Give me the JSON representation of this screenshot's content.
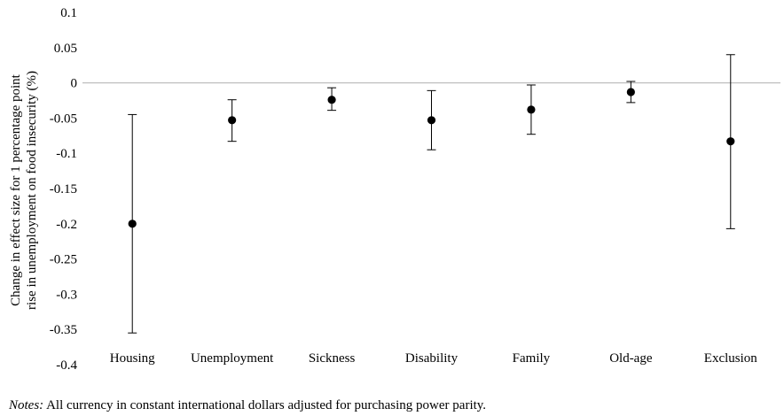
{
  "chart_data": {
    "type": "scatter",
    "title": "",
    "ylabel": [
      "Change in effect size for 1 percentage point",
      "rise in unemployment on food insecurity (%)"
    ],
    "xlabel": "",
    "categories": [
      "Housing",
      "Unemployment",
      "Sickness",
      "Disability",
      "Family",
      "Old-age",
      "Exclusion"
    ],
    "ylim": [
      -0.4,
      0.1
    ],
    "yticks": [
      0.1,
      0.05,
      0,
      -0.05,
      -0.1,
      -0.15,
      -0.2,
      -0.25,
      -0.3,
      -0.35,
      -0.4
    ],
    "ytick_labels": [
      "0.1",
      "0.05",
      "0",
      "-0.05",
      "-0.1",
      "-0.15",
      "-0.2",
      "-0.25",
      "-0.3",
      "-0.35",
      "-0.4"
    ],
    "series": [
      {
        "estimates": [
          -0.2,
          -0.053,
          -0.024,
          -0.053,
          -0.038,
          -0.013,
          -0.083
        ],
        "ci_upper": [
          -0.045,
          -0.024,
          -0.007,
          -0.011,
          -0.003,
          0.002,
          0.04
        ],
        "ci_lower": [
          -0.355,
          -0.083,
          -0.039,
          -0.095,
          -0.073,
          -0.028,
          -0.207
        ]
      }
    ],
    "grid": false,
    "zero_line": true,
    "marker_color": "#000000",
    "zero_line_color": "#bfbfbf"
  },
  "notes": {
    "label": "Notes:",
    "text": " All currency in constant international dollars adjusted for purchasing power parity."
  }
}
